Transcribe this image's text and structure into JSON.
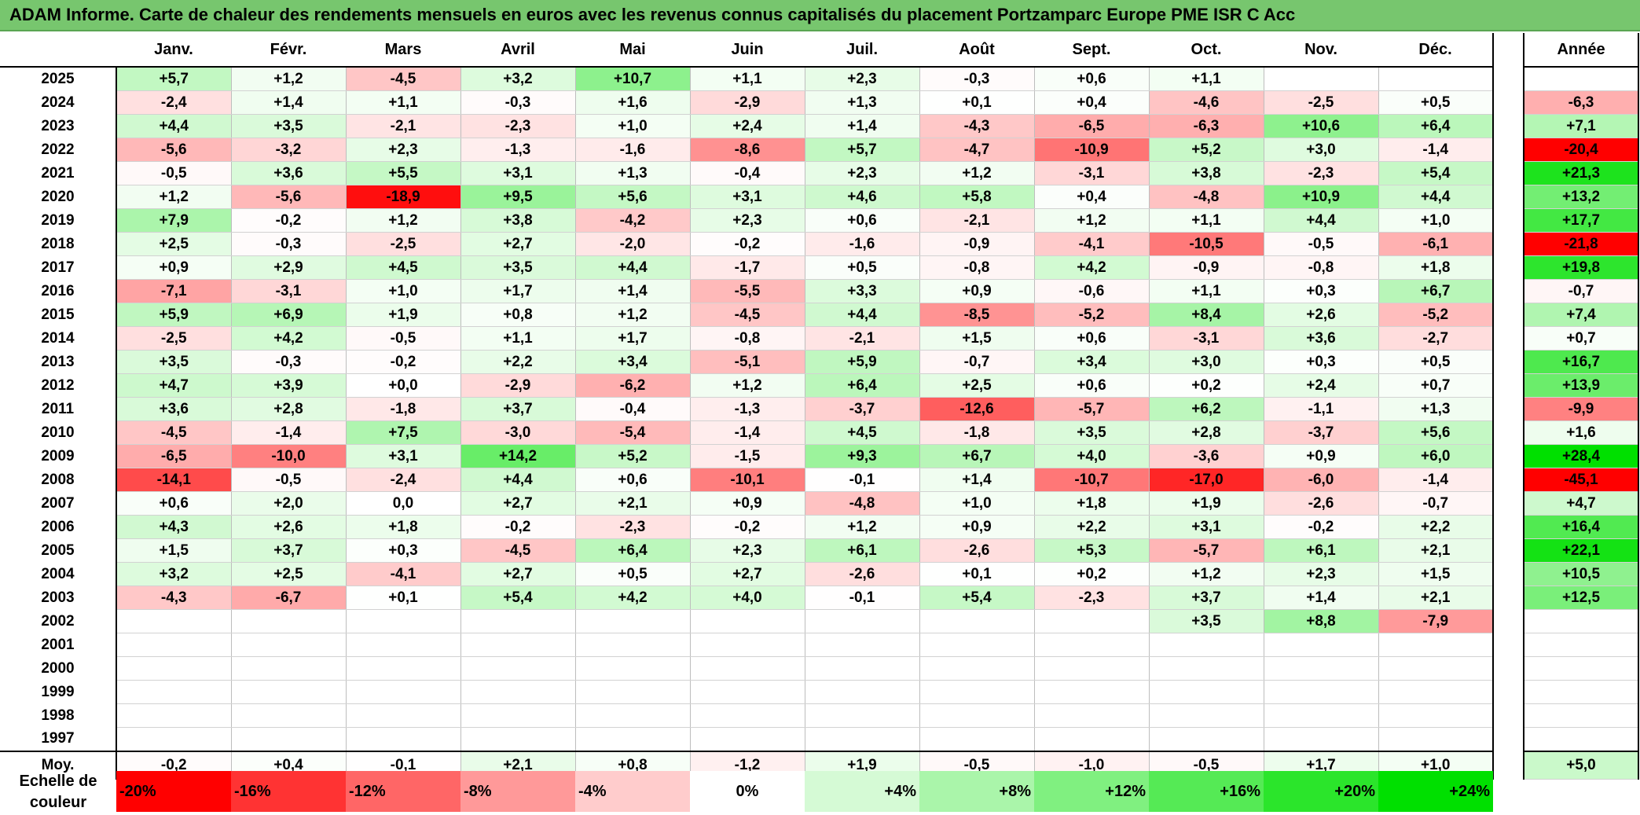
{
  "title": "ADAM Informe. Carte de chaleur des rendements mensuels en euros avec les revenus connus capitalisés du placement Portzamparc Europe PME ISR C Acc",
  "columns": [
    "Janv.",
    "Févr.",
    "Mars",
    "Avril",
    "Mai",
    "Juin",
    "Juil.",
    "Août",
    "Sept.",
    "Oct.",
    "Nov.",
    "Déc."
  ],
  "annual_header": "Année",
  "average_label": "Moy.",
  "scale_label": "Echelle de couleur",
  "scale": [
    "-20%",
    "-16%",
    "-12%",
    "-8%",
    "-4%",
    "0%",
    "+4%",
    "+8%",
    "+12%",
    "+16%",
    "+20%",
    "+24%"
  ],
  "colors": {
    "strong_negative": "#FF0000",
    "neutral": "#FFFFFF",
    "strong_positive": "#00E000",
    "title_bar": "#77C66E"
  },
  "chart_data": {
    "type": "heatmap",
    "title": "ADAM Informe. Carte de chaleur des rendements mensuels en euros avec les revenus connus capitalisés du placement Portzamparc Europe PME ISR C Acc",
    "categories": [
      "Janv.",
      "Févr.",
      "Mars",
      "Avril",
      "Mai",
      "Juin",
      "Juil.",
      "Août",
      "Sept.",
      "Oct.",
      "Nov.",
      "Déc."
    ],
    "rows": [
      {
        "year": "2025",
        "values": [
          "+5,7",
          "+1,2",
          "-4,5",
          "+3,2",
          "+10,7",
          "+1,1",
          "+2,3",
          "-0,3",
          "+0,6",
          "+1,1",
          "",
          ""
        ],
        "annual": ""
      },
      {
        "year": "2024",
        "values": [
          "-2,4",
          "+1,4",
          "+1,1",
          "-0,3",
          "+1,6",
          "-2,9",
          "+1,3",
          "+0,1",
          "+0,4",
          "-4,6",
          "-2,5",
          "+0,5"
        ],
        "annual": "-6,3"
      },
      {
        "year": "2023",
        "values": [
          "+4,4",
          "+3,5",
          "-2,1",
          "-2,3",
          "+1,0",
          "+2,4",
          "+1,4",
          "-4,3",
          "-6,5",
          "-6,3",
          "+10,6",
          "+6,4"
        ],
        "annual": "+7,1"
      },
      {
        "year": "2022",
        "values": [
          "-5,6",
          "-3,2",
          "+2,3",
          "-1,3",
          "-1,6",
          "-8,6",
          "+5,7",
          "-4,7",
          "-10,9",
          "+5,2",
          "+3,0",
          "-1,4"
        ],
        "annual": "-20,4"
      },
      {
        "year": "2021",
        "values": [
          "-0,5",
          "+3,6",
          "+5,5",
          "+3,1",
          "+1,3",
          "-0,4",
          "+2,3",
          "+1,2",
          "-3,1",
          "+3,8",
          "-2,3",
          "+5,4"
        ],
        "annual": "+21,3"
      },
      {
        "year": "2020",
        "values": [
          "+1,2",
          "-5,6",
          "-18,9",
          "+9,5",
          "+5,6",
          "+3,1",
          "+4,6",
          "+5,8",
          "+0,4",
          "-4,8",
          "+10,9",
          "+4,4"
        ],
        "annual": "+13,2"
      },
      {
        "year": "2019",
        "values": [
          "+7,9",
          "-0,2",
          "+1,2",
          "+3,8",
          "-4,2",
          "+2,3",
          "+0,6",
          "-2,1",
          "+1,2",
          "+1,1",
          "+4,4",
          "+1,0"
        ],
        "annual": "+17,7"
      },
      {
        "year": "2018",
        "values": [
          "+2,5",
          "-0,3",
          "-2,5",
          "+2,7",
          "-2,0",
          "-0,2",
          "-1,6",
          "-0,9",
          "-4,1",
          "-10,5",
          "-0,5",
          "-6,1"
        ],
        "annual": "-21,8"
      },
      {
        "year": "2017",
        "values": [
          "+0,9",
          "+2,9",
          "+4,5",
          "+3,5",
          "+4,4",
          "-1,7",
          "+0,5",
          "-0,8",
          "+4,2",
          "-0,9",
          "-0,8",
          "+1,8"
        ],
        "annual": "+19,8"
      },
      {
        "year": "2016",
        "values": [
          "-7,1",
          "-3,1",
          "+1,0",
          "+1,7",
          "+1,4",
          "-5,5",
          "+3,3",
          "+0,9",
          "-0,6",
          "+1,1",
          "+0,3",
          "+6,7"
        ],
        "annual": "-0,7"
      },
      {
        "year": "2015",
        "values": [
          "+5,9",
          "+6,9",
          "+1,9",
          "+0,8",
          "+1,2",
          "-4,5",
          "+4,4",
          "-8,5",
          "-5,2",
          "+8,4",
          "+2,6",
          "-5,2"
        ],
        "annual": "+7,4"
      },
      {
        "year": "2014",
        "values": [
          "-2,5",
          "+4,2",
          "-0,5",
          "+1,1",
          "+1,7",
          "-0,8",
          "-2,1",
          "+1,5",
          "+0,6",
          "-3,1",
          "+3,6",
          "-2,7"
        ],
        "annual": "+0,7"
      },
      {
        "year": "2013",
        "values": [
          "+3,5",
          "-0,3",
          "-0,2",
          "+2,2",
          "+3,4",
          "-5,1",
          "+5,9",
          "-0,7",
          "+3,4",
          "+3,0",
          "+0,3",
          "+0,5"
        ],
        "annual": "+16,7"
      },
      {
        "year": "2012",
        "values": [
          "+4,7",
          "+3,9",
          "+0,0",
          "-2,9",
          "-6,2",
          "+1,2",
          "+6,4",
          "+2,5",
          "+0,6",
          "+0,2",
          "+2,4",
          "+0,7"
        ],
        "annual": "+13,9"
      },
      {
        "year": "2011",
        "values": [
          "+3,6",
          "+2,8",
          "-1,8",
          "+3,7",
          "-0,4",
          "-1,3",
          "-3,7",
          "-12,6",
          "-5,7",
          "+6,2",
          "-1,1",
          "+1,3"
        ],
        "annual": "-9,9"
      },
      {
        "year": "2010",
        "values": [
          "-4,5",
          "-1,4",
          "+7,5",
          "-3,0",
          "-5,4",
          "-1,4",
          "+4,5",
          "-1,8",
          "+3,5",
          "+2,8",
          "-3,7",
          "+5,6"
        ],
        "annual": "+1,6"
      },
      {
        "year": "2009",
        "values": [
          "-6,5",
          "-10,0",
          "+3,1",
          "+14,2",
          "+5,2",
          "-1,5",
          "+9,3",
          "+6,7",
          "+4,0",
          "-3,6",
          "+0,9",
          "+6,0"
        ],
        "annual": "+28,4"
      },
      {
        "year": "2008",
        "values": [
          "-14,1",
          "-0,5",
          "-2,4",
          "+4,4",
          "+0,6",
          "-10,1",
          "-0,1",
          "+1,4",
          "-10,7",
          "-17,0",
          "-6,0",
          "-1,4"
        ],
        "annual": "-45,1"
      },
      {
        "year": "2007",
        "values": [
          "+0,6",
          "+2,0",
          "0,0",
          "+2,7",
          "+2,1",
          "+0,9",
          "-4,8",
          "+1,0",
          "+1,8",
          "+1,9",
          "-2,6",
          "-0,7"
        ],
        "annual": "+4,7"
      },
      {
        "year": "2006",
        "values": [
          "+4,3",
          "+2,6",
          "+1,8",
          "-0,2",
          "-2,3",
          "-0,2",
          "+1,2",
          "+0,9",
          "+2,2",
          "+3,1",
          "-0,2",
          "+2,2"
        ],
        "annual": "+16,4"
      },
      {
        "year": "2005",
        "values": [
          "+1,5",
          "+3,7",
          "+0,3",
          "-4,5",
          "+6,4",
          "+2,3",
          "+6,1",
          "-2,6",
          "+5,3",
          "-5,7",
          "+6,1",
          "+2,1"
        ],
        "annual": "+22,1"
      },
      {
        "year": "2004",
        "values": [
          "+3,2",
          "+2,5",
          "-4,1",
          "+2,7",
          "+0,5",
          "+2,7",
          "-2,6",
          "+0,1",
          "+0,2",
          "+1,2",
          "+2,3",
          "+1,5"
        ],
        "annual": "+10,5"
      },
      {
        "year": "2003",
        "values": [
          "-4,3",
          "-6,7",
          "+0,1",
          "+5,4",
          "+4,2",
          "+4,0",
          "-0,1",
          "+5,4",
          "-2,3",
          "+3,7",
          "+1,4",
          "+2,1"
        ],
        "annual": "+12,5"
      },
      {
        "year": "2002",
        "values": [
          "",
          "",
          "",
          "",
          "",
          "",
          "",
          "",
          "",
          "+3,5",
          "+8,8",
          "-7,9"
        ],
        "annual": ""
      },
      {
        "year": "2001",
        "values": [
          "",
          "",
          "",
          "",
          "",
          "",
          "",
          "",
          "",
          "",
          "",
          ""
        ],
        "annual": ""
      },
      {
        "year": "2000",
        "values": [
          "",
          "",
          "",
          "",
          "",
          "",
          "",
          "",
          "",
          "",
          "",
          ""
        ],
        "annual": ""
      },
      {
        "year": "1999",
        "values": [
          "",
          "",
          "",
          "",
          "",
          "",
          "",
          "",
          "",
          "",
          "",
          ""
        ],
        "annual": ""
      },
      {
        "year": "1998",
        "values": [
          "",
          "",
          "",
          "",
          "",
          "",
          "",
          "",
          "",
          "",
          "",
          ""
        ],
        "annual": ""
      },
      {
        "year": "1997",
        "values": [
          "",
          "",
          "",
          "",
          "",
          "",
          "",
          "",
          "",
          "",
          "",
          ""
        ],
        "annual": ""
      }
    ],
    "averages": [
      "-0,2",
      "+0,4",
      "-0,1",
      "+2,1",
      "+0,8",
      "-1,2",
      "+1,9",
      "-0,5",
      "-1,0",
      "-0,5",
      "+1,7",
      "+1,0"
    ],
    "annual_average": "+5,0",
    "color_scale": {
      "min": -20,
      "max": 24
    }
  }
}
